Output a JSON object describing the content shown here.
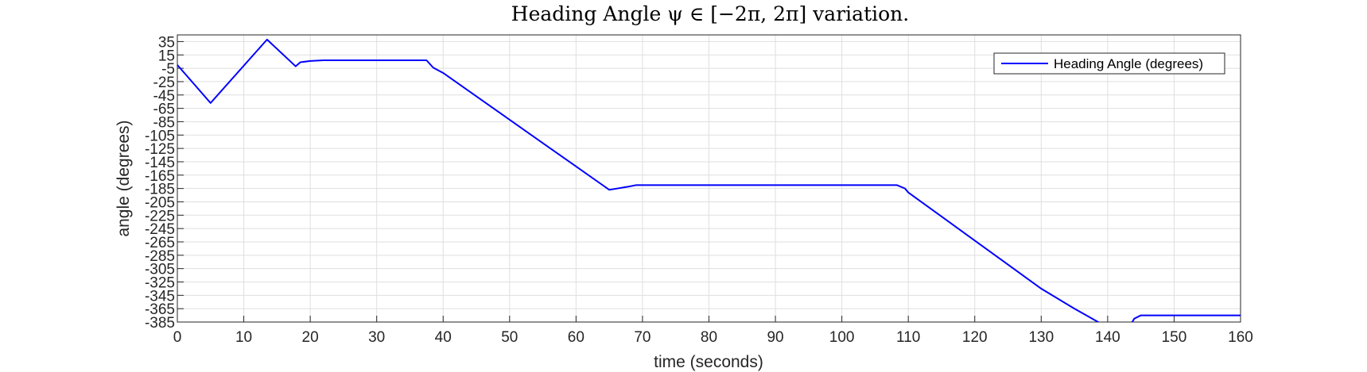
{
  "chart_data": {
    "type": "line",
    "title": "Heading Angle ψ ∈ [−2π, 2π] variation.",
    "xlabel": "time (seconds)",
    "ylabel": "angle (degrees)",
    "xlim": [
      0,
      160
    ],
    "ylim": [
      -385,
      45
    ],
    "x_ticks": [
      0,
      10,
      20,
      30,
      40,
      50,
      60,
      70,
      80,
      90,
      100,
      110,
      120,
      130,
      140,
      150,
      160
    ],
    "y_ticks": [
      35,
      15,
      -5,
      -25,
      -45,
      -65,
      -85,
      -105,
      -125,
      -145,
      -165,
      -185,
      -205,
      -225,
      -245,
      -265,
      -285,
      -305,
      -325,
      -345,
      -365,
      -385
    ],
    "y_tick_labels": [
      "35",
      "15",
      "-5",
      "-25",
      "-45",
      "-65",
      "-85",
      "-105",
      "-125",
      "-145",
      "-165",
      "-185",
      "-205",
      "-225",
      "-245",
      "-265",
      "-285",
      "-305",
      "-325",
      "-345",
      "-365",
      "-385"
    ],
    "grid": true,
    "legend": {
      "placement": "top-right",
      "entries": [
        "Heading Angle (degrees)"
      ]
    },
    "series": [
      {
        "name": "Heading Angle (degrees)",
        "color": "#0000ff",
        "x": [
          0,
          5,
          13.5,
          17.8,
          18.5,
          20,
          22,
          25,
          30,
          35,
          37.5,
          38.5,
          40,
          45,
          50,
          55,
          60,
          65,
          68,
          69,
          70,
          75,
          80,
          85,
          90,
          95,
          100,
          105,
          108.3,
          109.5,
          110,
          115,
          120,
          125,
          130,
          135,
          140,
          141,
          142.5,
          144,
          145,
          150,
          155,
          160
        ],
        "y": [
          0,
          -57,
          38,
          -2,
          4,
          6,
          7,
          7,
          7,
          7,
          7,
          -4,
          -12,
          -47,
          -82,
          -117,
          -152,
          -187,
          -182,
          -180,
          -180,
          -180,
          -180,
          -180,
          -180,
          -180,
          -180,
          -180,
          -180,
          -185,
          -191,
          -227,
          -263,
          -299,
          -335,
          -365,
          -393,
          -395,
          -405,
          -380,
          -375,
          -375,
          -375,
          -375
        ]
      }
    ]
  }
}
